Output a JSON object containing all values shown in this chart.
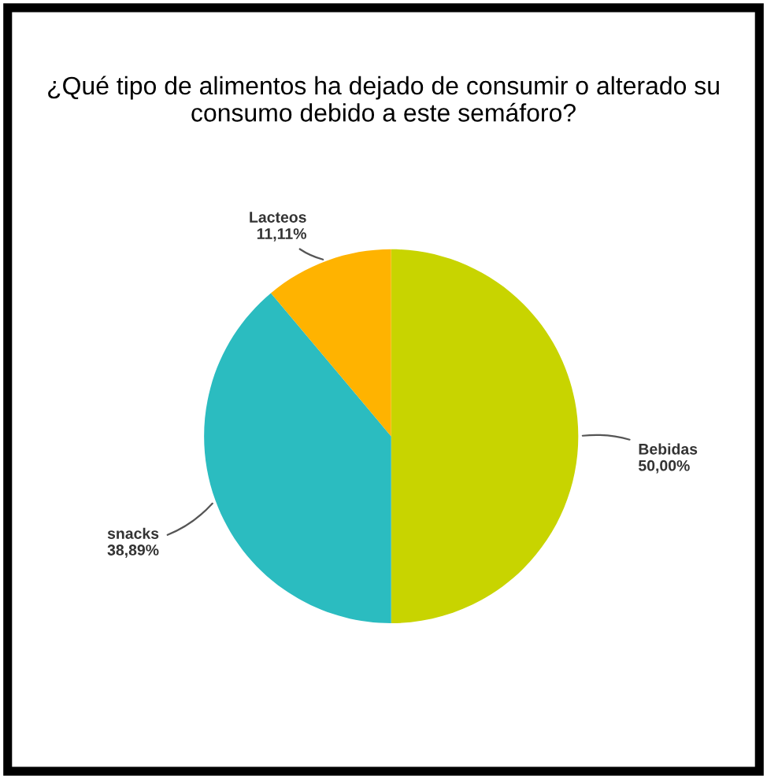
{
  "chart_data": {
    "type": "pie",
    "title": "¿Qué tipo de alimentos ha dejado de consumir o alterado su consumo debido a este semáforo?",
    "categories": [
      "Bebidas",
      "snacks",
      "Lacteos"
    ],
    "values": [
      50.0,
      38.89,
      11.11
    ],
    "value_labels": [
      "50,00%",
      "38,89%",
      "11,11%"
    ],
    "colors": [
      "#c8d400",
      "#2bbcc0",
      "#ffb300"
    ]
  }
}
